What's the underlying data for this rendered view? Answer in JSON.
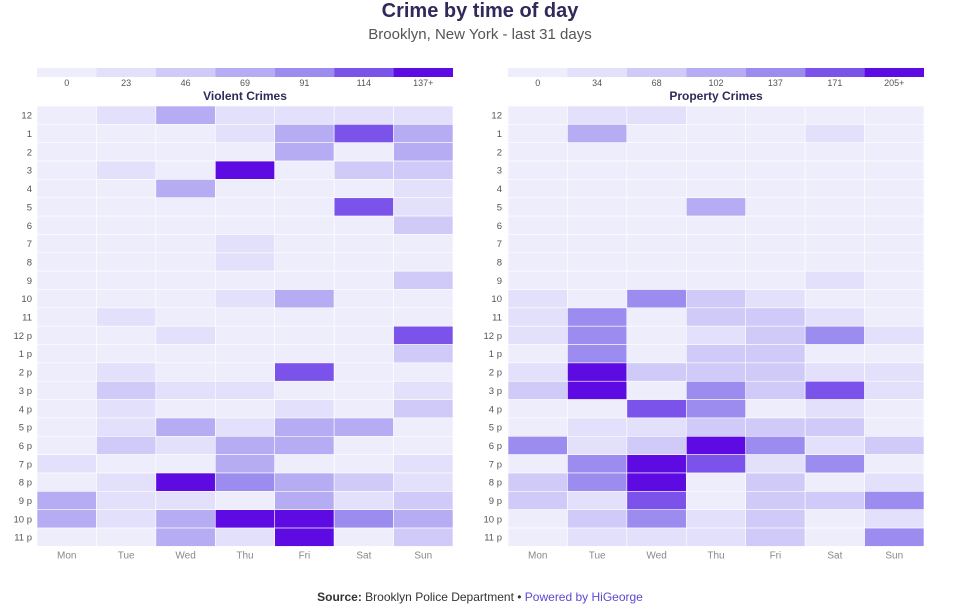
{
  "header": {
    "title": "Crime by time of day",
    "subtitle": "Brooklyn, New York - last 31 days"
  },
  "footer": {
    "source_label": "Source:",
    "source_text": "Brooklyn Police Department",
    "separator": "•",
    "powered_by": "Powered by HiGeorge"
  },
  "colors": {
    "scale": [
      "#eeedfc",
      "#e3e0fb",
      "#cfcaf7",
      "#b6acf4",
      "#9c8cef",
      "#7b52ea",
      "#5e0ae2"
    ],
    "grid": "#ffffff",
    "axis_text": "#555555",
    "title_text": "#2f2a5a"
  },
  "chart_data": [
    {
      "type": "heatmap",
      "title": "Violent Crimes",
      "x": [
        "Mon",
        "Tue",
        "Wed",
        "Thu",
        "Fri",
        "Sat",
        "Sun"
      ],
      "y": [
        "12",
        "1",
        "2",
        "3",
        "4",
        "5",
        "6",
        "7",
        "8",
        "9",
        "10",
        "11",
        "12 p",
        "1 p",
        "2 p",
        "3 p",
        "4 p",
        "5 p",
        "6 p",
        "7 p",
        "8 p",
        "9 p",
        "10 p",
        "11 p"
      ],
      "legend_ticks": [
        "0",
        "23",
        "46",
        "69",
        "91",
        "114",
        "137+"
      ],
      "legend_max": 137,
      "values": [
        [
          10,
          40,
          75,
          40,
          40,
          40,
          40
        ],
        [
          10,
          10,
          10,
          40,
          70,
          125,
          80
        ],
        [
          10,
          10,
          10,
          10,
          70,
          20,
          75
        ],
        [
          10,
          40,
          10,
          137,
          20,
          65,
          65
        ],
        [
          15,
          10,
          75,
          15,
          20,
          20,
          40
        ],
        [
          15,
          10,
          15,
          15,
          20,
          125,
          40
        ],
        [
          15,
          10,
          10,
          15,
          20,
          15,
          65
        ],
        [
          10,
          15,
          10,
          40,
          15,
          15,
          15
        ],
        [
          10,
          10,
          10,
          40,
          20,
          15,
          10
        ],
        [
          15,
          10,
          10,
          10,
          15,
          10,
          65
        ],
        [
          10,
          15,
          10,
          40,
          75,
          15,
          15
        ],
        [
          10,
          40,
          15,
          15,
          15,
          10,
          10
        ],
        [
          15,
          10,
          40,
          15,
          15,
          10,
          125
        ],
        [
          10,
          15,
          10,
          20,
          15,
          10,
          65
        ],
        [
          10,
          40,
          15,
          15,
          125,
          10,
          15
        ],
        [
          15,
          65,
          40,
          40,
          20,
          10,
          40
        ],
        [
          15,
          40,
          15,
          10,
          40,
          20,
          65
        ],
        [
          10,
          40,
          70,
          40,
          70,
          75,
          15
        ],
        [
          10,
          65,
          40,
          70,
          75,
          15,
          15
        ],
        [
          40,
          10,
          10,
          75,
          20,
          15,
          40
        ],
        [
          15,
          40,
          137,
          110,
          75,
          65,
          40
        ],
        [
          70,
          40,
          40,
          20,
          80,
          40,
          65
        ],
        [
          70,
          40,
          75,
          137,
          137,
          110,
          75
        ],
        [
          15,
          15,
          75,
          40,
          137,
          15,
          65
        ]
      ]
    },
    {
      "type": "heatmap",
      "title": "Property Crimes",
      "x": [
        "Mon",
        "Tue",
        "Wed",
        "Thu",
        "Fri",
        "Sat",
        "Sun"
      ],
      "y": [
        "12",
        "1",
        "2",
        "3",
        "4",
        "5",
        "6",
        "7",
        "8",
        "9",
        "10",
        "11",
        "12 p",
        "1 p",
        "2 p",
        "3 p",
        "4 p",
        "5 p",
        "6 p",
        "7 p",
        "8 p",
        "9 p",
        "10 p",
        "11 p"
      ],
      "legend_ticks": [
        "0",
        "34",
        "68",
        "102",
        "137",
        "171",
        "205+"
      ],
      "legend_max": 205,
      "values": [
        [
          10,
          55,
          55,
          20,
          20,
          15,
          20
        ],
        [
          10,
          105,
          15,
          15,
          15,
          60,
          20
        ],
        [
          20,
          15,
          15,
          15,
          10,
          10,
          10
        ],
        [
          10,
          20,
          15,
          10,
          10,
          10,
          10
        ],
        [
          10,
          10,
          10,
          10,
          20,
          10,
          10
        ],
        [
          10,
          10,
          10,
          105,
          10,
          10,
          10
        ],
        [
          20,
          10,
          10,
          10,
          10,
          10,
          10
        ],
        [
          10,
          10,
          20,
          10,
          20,
          10,
          10
        ],
        [
          10,
          20,
          20,
          20,
          20,
          10,
          20
        ],
        [
          10,
          10,
          20,
          10,
          10,
          55,
          20
        ],
        [
          60,
          20,
          140,
          100,
          60,
          20,
          20
        ],
        [
          60,
          140,
          20,
          100,
          100,
          60,
          20
        ],
        [
          60,
          140,
          20,
          60,
          100,
          140,
          60
        ],
        [
          20,
          140,
          20,
          100,
          100,
          15,
          15
        ],
        [
          60,
          205,
          100,
          100,
          100,
          60,
          60
        ],
        [
          100,
          205,
          20,
          140,
          100,
          180,
          60
        ],
        [
          20,
          20,
          180,
          140,
          20,
          60,
          20
        ],
        [
          20,
          60,
          60,
          100,
          100,
          100,
          20
        ],
        [
          140,
          60,
          100,
          205,
          140,
          60,
          100
        ],
        [
          20,
          140,
          205,
          180,
          60,
          140,
          20
        ],
        [
          100,
          140,
          205,
          20,
          100,
          20,
          60
        ],
        [
          100,
          60,
          180,
          20,
          100,
          100,
          140
        ],
        [
          20,
          100,
          140,
          60,
          100,
          20,
          60
        ],
        [
          20,
          60,
          60,
          60,
          100,
          20,
          140
        ]
      ]
    }
  ]
}
